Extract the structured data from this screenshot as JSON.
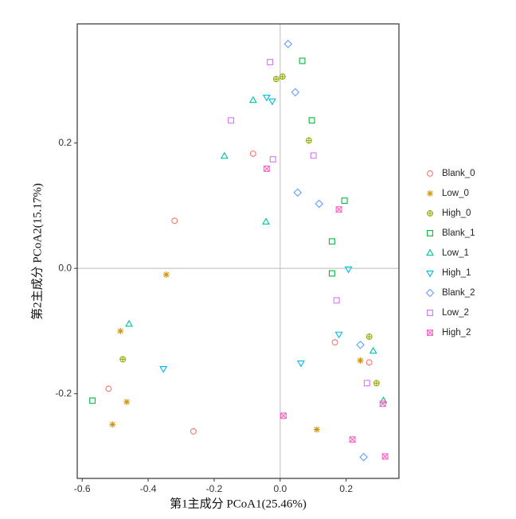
{
  "chart_data": {
    "type": "scatter",
    "x_label": "第1主成分 PCoA1(25.46%)",
    "y_label": "第2主成分 PCoA2(15.17%)",
    "xlim": [
      -0.615,
      0.36
    ],
    "ylim": [
      -0.335,
      0.39
    ],
    "xticks": [
      -0.6,
      -0.4,
      -0.2,
      {
        "value": 0,
        "label": "0.0"
      },
      0.2
    ],
    "yticks": [
      -0.2,
      {
        "value": 0,
        "label": "0.0"
      },
      0.2
    ],
    "reference_lines": true,
    "legend": "right",
    "series": [
      {
        "name": "Blank_0",
        "color": "#F8766D",
        "marker": "circle",
        "x": [
          -0.32,
          -0.082,
          -0.52,
          -0.263,
          0.166,
          0.27
        ],
        "values": [
          0.076,
          0.183,
          -0.192,
          -0.26,
          -0.118,
          -0.15
        ]
      },
      {
        "name": "Low_0",
        "color": "#D39200",
        "marker": "asterisk",
        "x": [
          -0.345,
          -0.484,
          -0.465,
          -0.508,
          0.111,
          0.243
        ],
        "values": [
          -0.01,
          -0.1,
          -0.213,
          -0.249,
          -0.257,
          -0.147
        ]
      },
      {
        "name": "High_0",
        "color": "#93AA00",
        "marker": "circle-plus",
        "x": [
          -0.012,
          0.007,
          0.087,
          -0.477,
          0.27,
          0.292
        ],
        "values": [
          0.302,
          0.306,
          0.204,
          -0.145,
          -0.109,
          -0.183
        ]
      },
      {
        "name": "Blank_1",
        "color": "#00BA38",
        "marker": "square",
        "x": [
          0.067,
          0.096,
          0.195,
          0.157,
          0.157,
          -0.569
        ],
        "values": [
          0.331,
          0.236,
          0.108,
          0.043,
          -0.008,
          -0.211
        ]
      },
      {
        "name": "Low_1",
        "color": "#00C19F",
        "marker": "triangle-up",
        "x": [
          -0.082,
          -0.169,
          -0.043,
          -0.458,
          0.282,
          0.313
        ],
        "values": [
          0.268,
          0.179,
          0.074,
          -0.089,
          -0.132,
          -0.211
        ]
      },
      {
        "name": "High_1",
        "color": "#00B9E3",
        "marker": "triangle-down",
        "x": [
          -0.041,
          -0.024,
          0.207,
          0.178,
          0.063,
          -0.354
        ],
        "values": [
          0.273,
          0.267,
          -0.001,
          -0.105,
          -0.151,
          -0.16
        ]
      },
      {
        "name": "Blank_2",
        "color": "#619CFF",
        "marker": "diamond",
        "x": [
          0.024,
          0.046,
          0.053,
          0.118,
          0.243,
          0.253
        ],
        "values": [
          0.358,
          0.281,
          0.121,
          0.103,
          -0.122,
          -0.301
        ]
      },
      {
        "name": "Low_2",
        "color": "#DB72FB",
        "marker": "square",
        "x": [
          -0.031,
          -0.149,
          -0.022,
          0.101,
          0.171,
          0.263
        ],
        "values": [
          0.329,
          0.236,
          0.174,
          0.18,
          -0.051,
          -0.183
        ]
      },
      {
        "name": "High_2",
        "color": "#FF61C3",
        "marker": "square-x",
        "x": [
          -0.041,
          0.178,
          0.01,
          0.219,
          0.311,
          0.318
        ],
        "values": [
          0.159,
          0.094,
          -0.235,
          -0.273,
          -0.216,
          -0.3
        ]
      }
    ]
  }
}
